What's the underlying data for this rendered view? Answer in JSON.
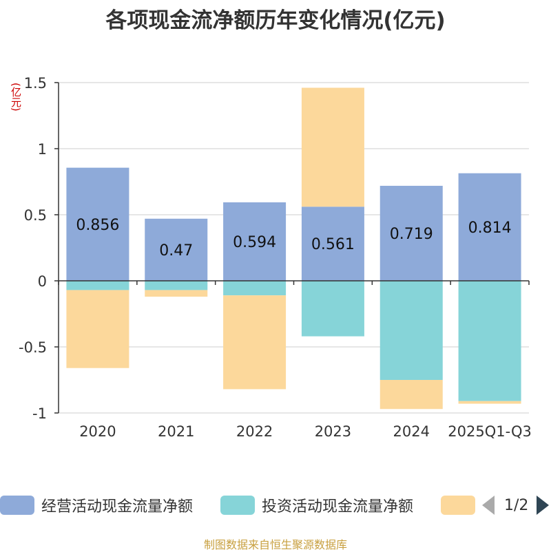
{
  "title": "各项现金流净额历年变化情况(亿元)",
  "unit_label": "(亿元)",
  "source": "制图数据来自恒生聚源数据库",
  "legend": {
    "items": [
      {
        "label": "经营活动现金流量净额",
        "color": "#8eaad9"
      },
      {
        "label": "投资活动现金流量净额",
        "color": "#86d4d8"
      },
      {
        "label": "",
        "color": "#fcd89b"
      }
    ],
    "page": "1/2"
  },
  "chart_data": {
    "type": "bar",
    "stacked": true,
    "title": "各项现金流净额历年变化情况(亿元)",
    "ylabel": "(亿元)",
    "categories": [
      "2020",
      "2021",
      "2022",
      "2023",
      "2024",
      "2025Q1-Q3"
    ],
    "ylim": [
      -1,
      1.5
    ],
    "yticks": [
      "1.5",
      "1",
      "0.5",
      "0",
      "-0.5",
      "-1"
    ],
    "grid": true,
    "legend_position": "bottom",
    "series": [
      {
        "name": "经营活动现金流量净额",
        "color": "#8eaad9",
        "values": [
          0.856,
          0.47,
          0.594,
          0.561,
          0.719,
          0.814
        ],
        "labels": [
          "0.856",
          "0.47",
          "0.594",
          "0.561",
          "0.719",
          "0.814"
        ]
      },
      {
        "name": "投资活动现金流量净额",
        "color": "#86d4d8",
        "values": [
          -0.07,
          -0.07,
          -0.11,
          -0.42,
          -0.75,
          -0.91
        ]
      },
      {
        "color": "#fcd89b",
        "values": [
          -0.59,
          -0.05,
          -0.71,
          0.9,
          -0.22,
          -0.02
        ]
      }
    ]
  }
}
